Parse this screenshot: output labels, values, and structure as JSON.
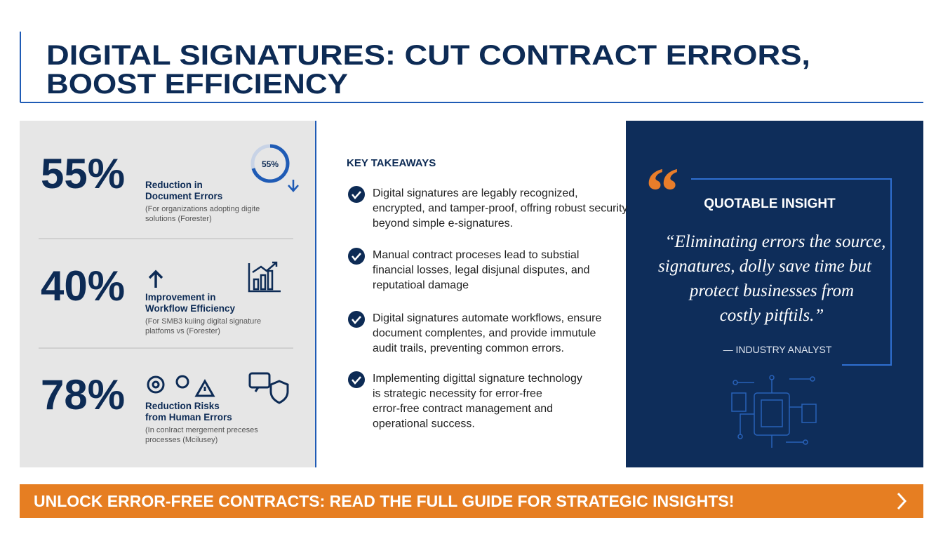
{
  "header": {
    "title_lines": [
      "DIGITAL SIGNATURES: CUT CONTRACT ERRORS,",
      "BOOST EFFICIENCY"
    ]
  },
  "stats": [
    {
      "value": "55%",
      "badge": "55%",
      "label_lines": [
        "Reduction in",
        "Document Errors"
      ],
      "note_lines": [
        "(For organizations adopting digite",
        "solutions (Forester)"
      ]
    },
    {
      "value": "40%",
      "label_lines": [
        "Improvement in",
        "Workflow Efficiency"
      ],
      "note_lines": [
        "(For SMB3 kuiing digital signature",
        "platfoms vs (Forester)"
      ]
    },
    {
      "value": "78%",
      "label_lines": [
        "Reduction Risks",
        "from Human Errors"
      ],
      "note_lines": [
        "(In conlract mergement preceses",
        "processes (Mcilusey)"
      ]
    }
  ],
  "takeaways": {
    "title": "KEY TAKEAWAYS",
    "items": [
      [
        "Digital signatures are legably recognized,",
        "encrypted, and tamper-proof, offring robust security",
        "beyond simple e-signatures."
      ],
      [
        "Manual contract proceses lead to substial",
        "financial losses, legal disjunal disputes, and",
        "reputatioal damage"
      ],
      [
        "Digital signatures automate workflows, ensure",
        "document complentes, and provide immutule",
        "audit trails, preventing common errors."
      ],
      [
        "Implementing digittal signature technology",
        "is strategic necessity for error-free",
        "error-free contract management and",
        "operational success."
      ]
    ]
  },
  "quote": {
    "heading": "QUOTABLE INSIGHT",
    "lines": [
      "“Eliminating errors the source,",
      "signatures, dolly save time but",
      "protect businesses from",
      "costly pitftils.”"
    ],
    "attribution": "— INDUSTRY ANALYST"
  },
  "banner": {
    "text": "UNLOCK ERROR-FREE CONTRACTS: READ THE FULL GUIDE FOR STRATEGIC INSIGHTS!"
  }
}
